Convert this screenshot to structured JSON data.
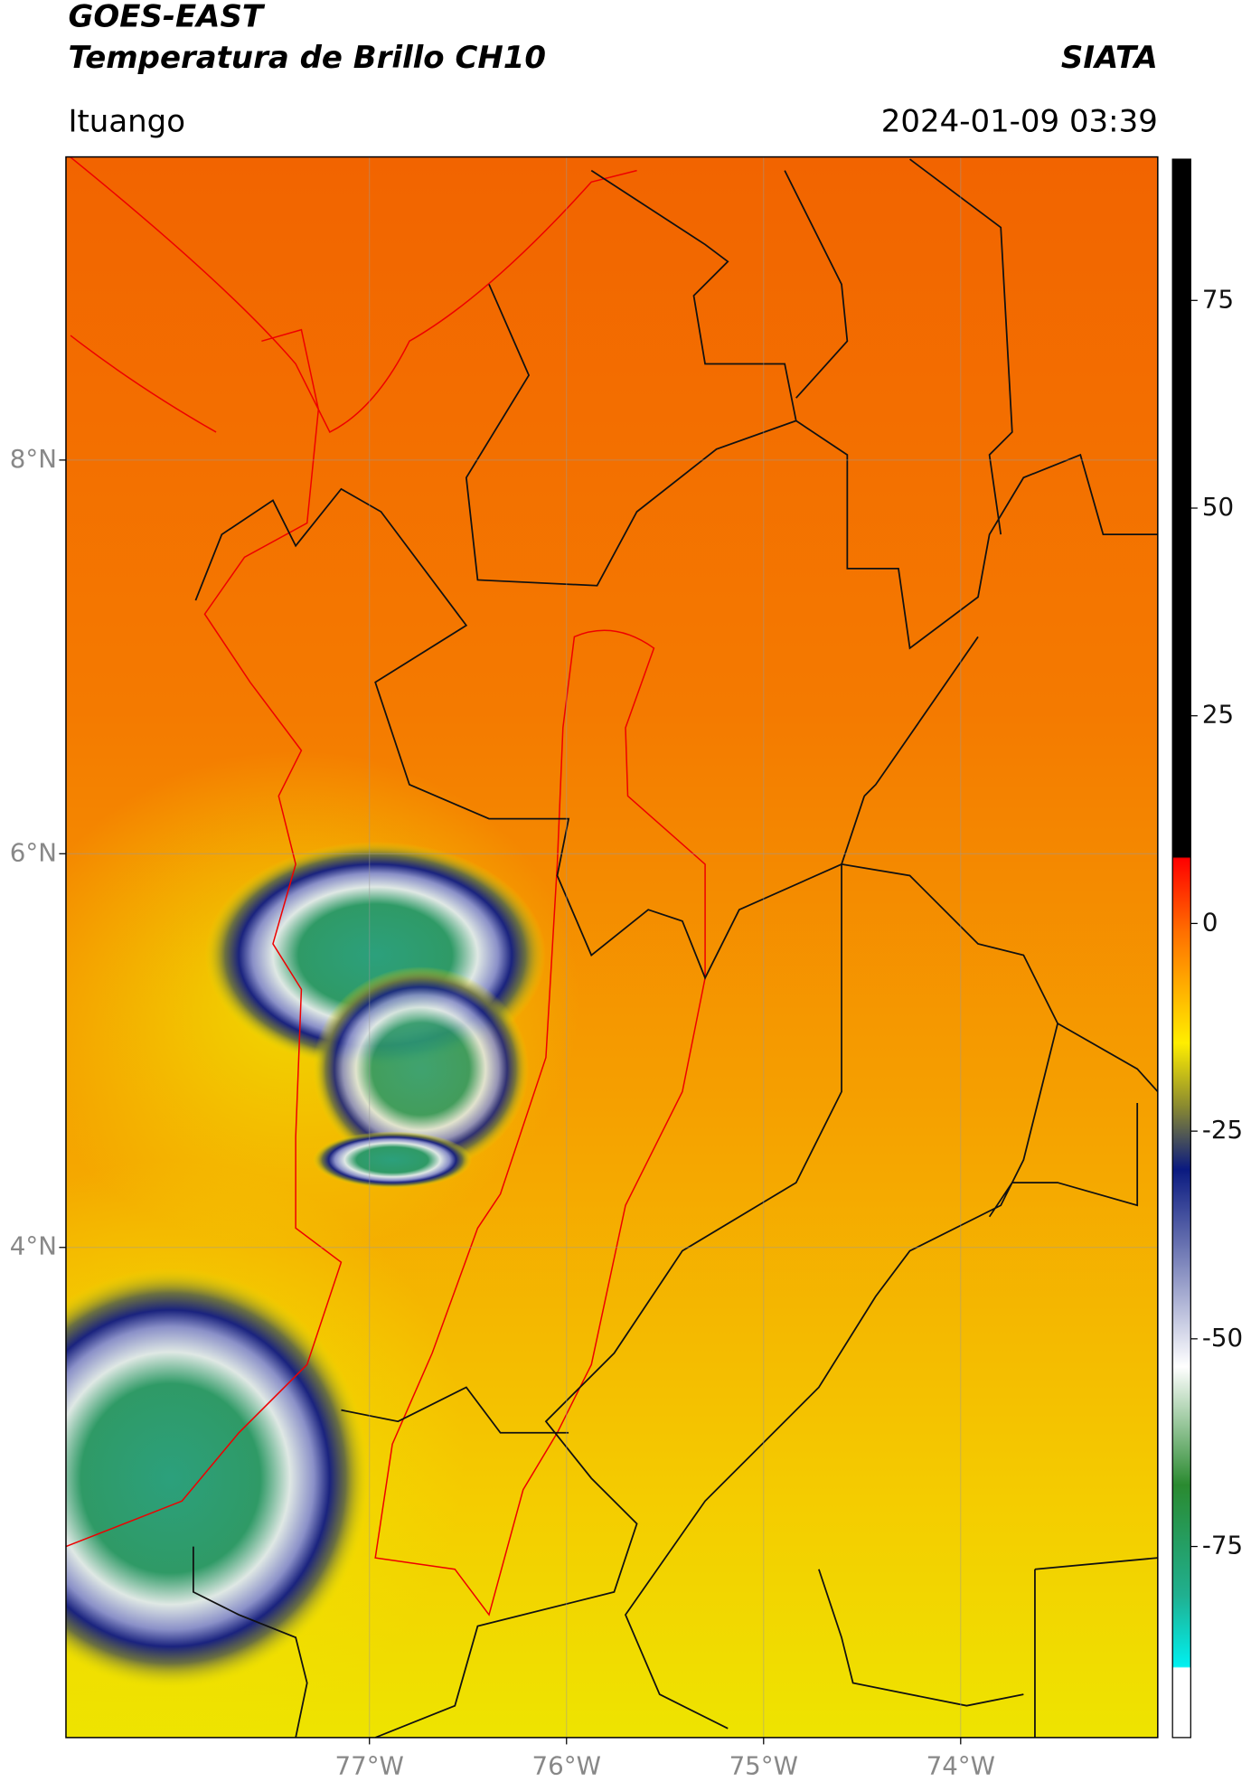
{
  "header": {
    "title": "GOES-EAST",
    "subtitle": "Temperatura de Brillo CH10",
    "source": "SIATA",
    "region": "Ituango",
    "datetime": "2024-01-09 03:39"
  },
  "map": {
    "xlim": [
      -78.54,
      -73.0
    ],
    "ylim": [
      1.51,
      9.54
    ],
    "xticks": [
      {
        "value": -77,
        "label": "77°W"
      },
      {
        "value": -76,
        "label": "76°W"
      },
      {
        "value": -75,
        "label": "75°W"
      },
      {
        "value": -74,
        "label": "74°W"
      }
    ],
    "yticks": [
      {
        "value": 8,
        "label": "8°N"
      },
      {
        "value": 6,
        "label": "6°N"
      },
      {
        "value": 4,
        "label": "4°N"
      }
    ],
    "grid": true
  },
  "colorbar": {
    "lim": [
      -98,
      92
    ],
    "ticks": [
      75,
      50,
      25,
      0,
      -25,
      -50,
      -75
    ]
  }
}
